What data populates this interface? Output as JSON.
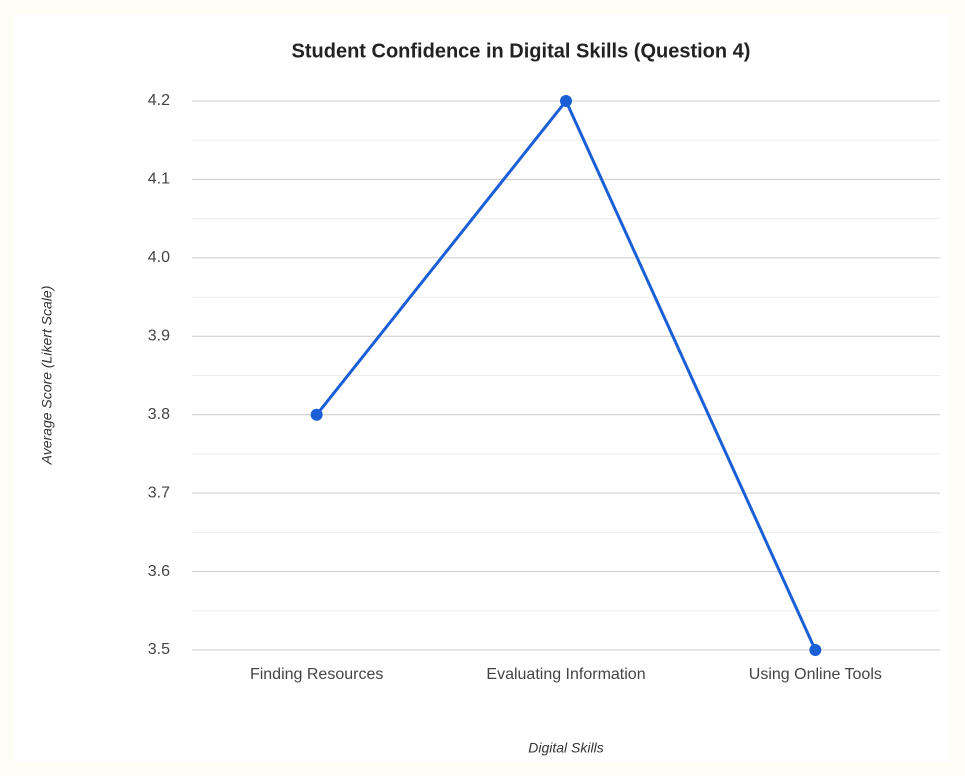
{
  "chart_data": {
    "type": "line",
    "title": "Student Confidence in Digital Skills (Question 4)",
    "x_label": "Digital Skills",
    "y_label": "Average Score (Likert Scale)",
    "categories": [
      "Finding Resources",
      "Evaluating Information",
      "Using Online Tools"
    ],
    "series": [
      {
        "name": "Average Score",
        "color": "#1a5fd6",
        "values": [
          3.8,
          4.2,
          3.5
        ]
      }
    ],
    "ylim": [
      3.5,
      4.2
    ],
    "yticks": [
      3.5,
      3.6,
      3.7,
      3.8,
      3.9,
      {
        "value": 4,
        "label": "4.0"
      },
      4.1,
      4.2
    ],
    "grid": true
  }
}
